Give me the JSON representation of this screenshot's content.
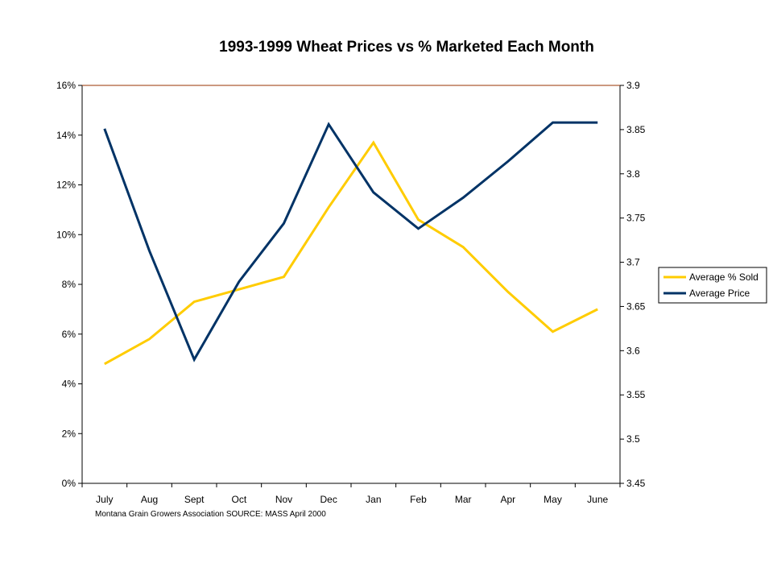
{
  "chart_data": {
    "type": "line",
    "title": "1993-1999 Wheat Prices vs % Marketed Each Month",
    "categories": [
      "July",
      "Aug",
      "Sept",
      "Oct",
      "Nov",
      "Dec",
      "Jan",
      "Feb",
      "Mar",
      "Apr",
      "May",
      "June"
    ],
    "y_left": {
      "min": 0,
      "max": 16,
      "step": 2,
      "tick_labels": [
        "0%",
        "2%",
        "4%",
        "6%",
        "8%",
        "10%",
        "12%",
        "14%",
        "16%"
      ]
    },
    "y_right": {
      "min": 3.45,
      "max": 3.9,
      "step": 0.05,
      "tick_labels": [
        "3.45",
        "3.5",
        "3.55",
        "3.6",
        "3.65",
        "3.7",
        "3.75",
        "3.8",
        "3.85",
        "3.9"
      ]
    },
    "series": [
      {
        "name": "Average % Sold",
        "axis": "left",
        "color": "#FFCC00",
        "values": [
          4.8,
          5.8,
          7.3,
          7.8,
          8.3,
          11.1,
          13.7,
          10.6,
          9.5,
          7.7,
          6.1,
          7.0
        ]
      },
      {
        "name": "Average Price",
        "axis": "right",
        "color": "#003366",
        "values": [
          3.851,
          3.713,
          3.59,
          3.678,
          3.744,
          3.856,
          3.779,
          3.738,
          3.773,
          3.814,
          3.858,
          3.858
        ]
      }
    ],
    "source_note": "Montana Grain Growers Association  SOURCE:  MASS  April 2000",
    "legend_position": "right",
    "grid": false,
    "top_border_color": "#993300"
  }
}
